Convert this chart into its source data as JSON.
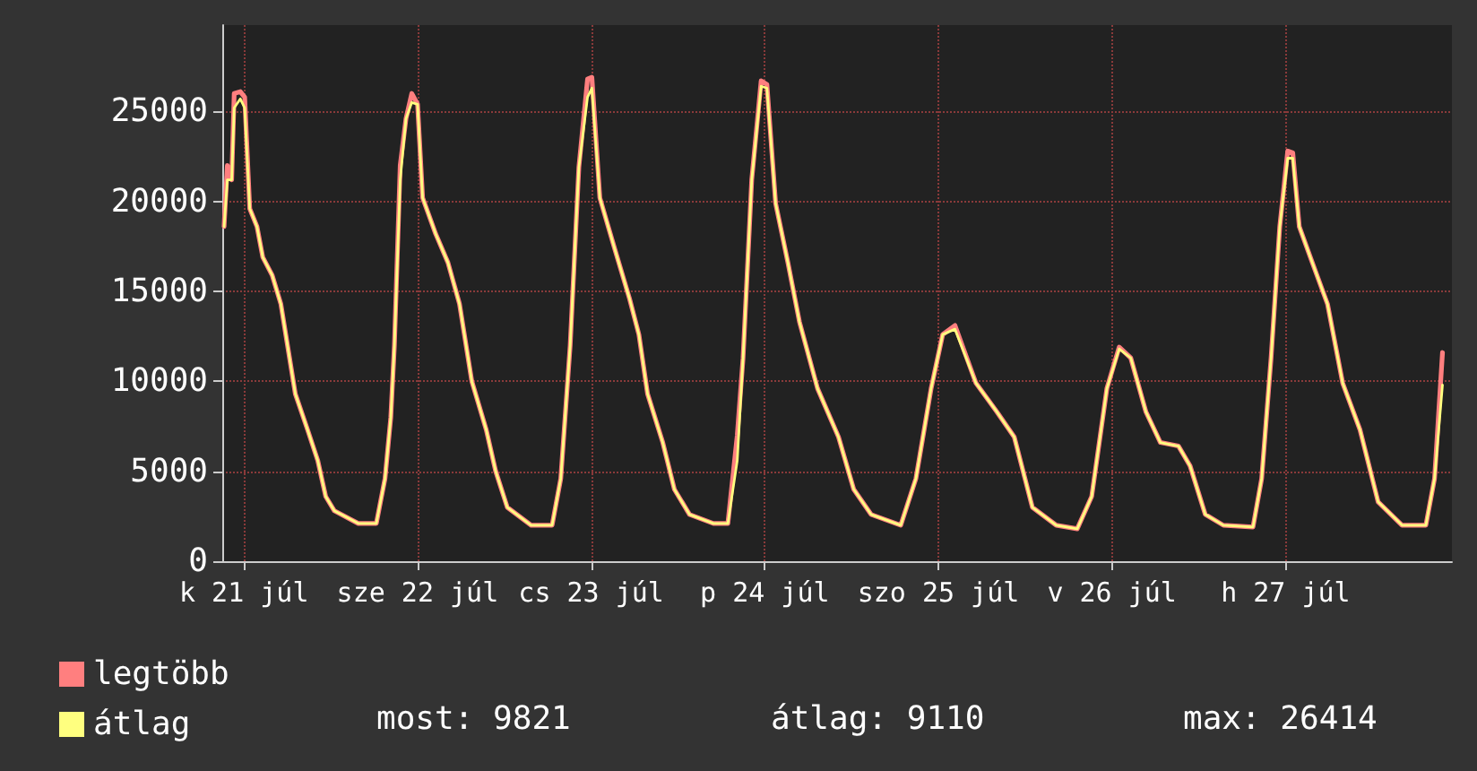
{
  "chart_data": {
    "type": "line",
    "x": [
      "--07-20T21:15",
      "--07-20T21:42",
      "--07-20T22:18",
      "--07-20T22:39",
      "--07-20T23:30",
      "--07-21T00:06",
      "--07-21T00:48",
      "--07-21T01:48",
      "--07-21T02:36",
      "--07-21T03:54",
      "--07-21T05:06",
      "--07-21T06:18",
      "--07-21T07:06",
      "--07-21T08:48",
      "--07-21T10:12",
      "--07-21T11:18",
      "--07-21T12:30",
      "--07-21T15:48",
      "--07-21T18:18",
      "--07-21T19:30",
      "--07-21T20:18",
      "--07-21T20:48",
      "--07-21T21:36",
      "--07-21T22:24",
      "--07-21T23:12",
      "--07-22T00:00",
      "--07-22T00:42",
      "--07-22T02:30",
      "--07-22T04:12",
      "--07-22T05:48",
      "--07-22T07:30",
      "--07-22T09:30",
      "--07-22T10:48",
      "--07-22T12:24",
      "--07-22T15:42",
      "--07-22T18:36",
      "--07-22T19:48",
      "--07-22T21:06",
      "--07-22T22:18",
      "--07-22T23:30",
      "--07-23T00:06",
      "--07-23T01:12",
      "--07-23T03:18",
      "--07-23T05:18",
      "--07-23T06:36",
      "--07-23T07:48",
      "--07-23T09:54",
      "--07-23T11:30",
      "--07-23T13:36",
      "--07-23T16:54",
      "--07-23T18:54",
      "--07-23T20:12",
      "--07-23T21:00",
      "--07-23T22:12",
      "--07-23T23:30",
      "--07-24T00:18",
      "--07-24T01:30",
      "--07-24T03:12",
      "--07-24T04:48",
      "--07-24T07:18",
      "--07-24T10:12",
      "--07-24T12:18",
      "--07-24T14:42",
      "--07-24T18:48",
      "--07-24T20:54",
      "--07-24T23:00",
      "--07-25T00:36",
      "--07-25T02:18",
      "--07-25T05:12",
      "--07-25T08:06",
      "--07-25T10:30",
      "--07-25T13:00",
      "--07-25T16:18",
      "--07-25T19:12",
      "--07-25T21:12",
      "--07-25T23:18",
      "--07-26T01:00",
      "--07-26T02:36",
      "--07-26T04:42",
      "--07-26T06:42",
      "--07-26T09:12",
      "--07-26T10:48",
      "--07-26T12:54",
      "--07-26T15:24",
      "--07-26T19:30",
      "--07-26T20:42",
      "--07-26T22:00",
      "--07-26T23:12",
      "--07-27T00:18",
      "--07-27T01:00",
      "--07-27T01:54",
      "--07-27T03:42",
      "--07-27T05:48",
      "--07-27T07:54",
      "--07-27T10:18",
      "--07-27T12:48",
      "--07-27T16:06",
      "--07-27T19:24",
      "--07-27T20:36",
      "--07-27T21:42"
    ],
    "series": [
      {
        "name": "legtöbb",
        "color": "#ff7f7f",
        "values": [
          18600,
          22000,
          21200,
          26000,
          26100,
          25800,
          19600,
          18600,
          16900,
          15900,
          14300,
          11300,
          9300,
          7300,
          5600,
          3600,
          2800,
          2100,
          2100,
          4600,
          8000,
          12000,
          22000,
          24600,
          26000,
          25400,
          20200,
          18200,
          16600,
          14300,
          10000,
          7300,
          5000,
          3000,
          2000,
          2000,
          4600,
          12000,
          21900,
          26800,
          26900,
          20200,
          17300,
          14600,
          12600,
          9300,
          6600,
          4000,
          2600,
          2100,
          2100,
          7000,
          11300,
          21200,
          26700,
          26500,
          19900,
          16600,
          13300,
          9600,
          6900,
          4000,
          2600,
          2000,
          4600,
          9600,
          12600,
          13100,
          9900,
          8300,
          6900,
          3000,
          2000,
          1800,
          3600,
          9600,
          11900,
          11300,
          8300,
          6600,
          6400,
          5300,
          2600,
          2000,
          1900,
          4600,
          11300,
          18600,
          22800,
          22700,
          18600,
          16600,
          14300,
          9900,
          7300,
          3300,
          2000,
          2000,
          4600,
          11600
        ]
      },
      {
        "name": "átlag",
        "color": "#ffff7f",
        "values": [
          18600,
          21200,
          21200,
          25200,
          25700,
          25200,
          19600,
          18600,
          16900,
          15900,
          14300,
          11300,
          9300,
          7300,
          5600,
          3600,
          2800,
          2100,
          2100,
          4600,
          8000,
          12000,
          21200,
          24600,
          25500,
          25400,
          20200,
          18200,
          16600,
          14300,
          10000,
          7300,
          5000,
          3000,
          2000,
          2000,
          4600,
          12000,
          21900,
          25800,
          26300,
          20200,
          17300,
          14600,
          12600,
          9300,
          6600,
          4000,
          2600,
          2100,
          2100,
          5600,
          11300,
          21200,
          26400,
          26300,
          19900,
          16600,
          13300,
          9600,
          6900,
          4000,
          2600,
          2000,
          4600,
          9600,
          12600,
          12900,
          9900,
          8300,
          6900,
          3000,
          2000,
          1800,
          3600,
          9600,
          11800,
          11300,
          8300,
          6600,
          6400,
          5300,
          2600,
          2000,
          1900,
          4600,
          11300,
          18600,
          22400,
          22400,
          18600,
          16600,
          14300,
          9900,
          7300,
          3300,
          2000,
          2000,
          4600,
          9800
        ]
      }
    ],
    "xlim": [
      "--07-20T21:00",
      "--07-27T23:00"
    ],
    "xticks": [
      {
        "value": "--07-21",
        "label": "k 21 júl"
      },
      {
        "value": "--07-22",
        "label": "sze 22 júl"
      },
      {
        "value": "--07-23",
        "label": "cs 23 júl"
      },
      {
        "value": "--07-24",
        "label": "p 24 júl"
      },
      {
        "value": "--07-25",
        "label": "szo 25 júl"
      },
      {
        "value": "--07-26",
        "label": "v 26 júl"
      },
      {
        "value": "--07-27",
        "label": "h 27 júl"
      }
    ],
    "ylim": [
      0,
      29800
    ],
    "yticks": [
      0,
      5000,
      10000,
      15000,
      20000,
      25000
    ],
    "grid": true,
    "legend": "bottom left",
    "marker": "none",
    "line_style": "solid",
    "annotations": [
      "most: 9821",
      "átlag: 9110",
      "max: 26414"
    ]
  }
}
